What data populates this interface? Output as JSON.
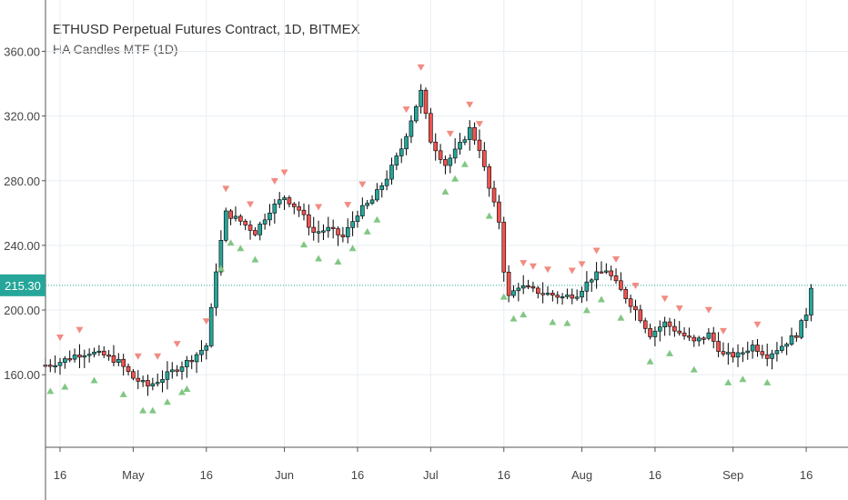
{
  "chart_data": {
    "type": "candlestick",
    "title": "ETHUSD Perpetual Futures Contract, 1D, BITMEX",
    "subtitle": "HA Candles MTF (1D)",
    "ylim": [
      132,
      376
    ],
    "y_ticks": [
      "360.00",
      "320.00",
      "280.00",
      "240.00",
      "200.00",
      "160.00"
    ],
    "y_tick_values": [
      360,
      320,
      280,
      240,
      200,
      160
    ],
    "x_ticks": [
      "16",
      "May",
      "16",
      "Jun",
      "16",
      "Jul",
      "16",
      "Aug",
      "16",
      "Sep",
      "16"
    ],
    "x_tick_days": [
      0,
      15,
      30,
      46,
      61,
      76,
      91,
      107,
      122,
      138,
      153
    ],
    "grid": true,
    "current_price": 215.3,
    "current_price_label": "215.30",
    "colors": {
      "up": "#26a69a",
      "down": "#ef5350",
      "up_marker": "#81c784",
      "down_marker": "#f28b82",
      "price_line": "#26a69a",
      "grid": "#e8eef3",
      "axis": "#555555"
    },
    "close_path": [
      [
        -3,
        166
      ],
      [
        0,
        168
      ],
      [
        3,
        172
      ],
      [
        6,
        174
      ],
      [
        9,
        172
      ],
      [
        12,
        168
      ],
      [
        15,
        158
      ],
      [
        18,
        153
      ],
      [
        21,
        158
      ],
      [
        24,
        164
      ],
      [
        27,
        170
      ],
      [
        30,
        178
      ],
      [
        31,
        200
      ],
      [
        32,
        225
      ],
      [
        34,
        260
      ],
      [
        37,
        255
      ],
      [
        40,
        248
      ],
      [
        43,
        262
      ],
      [
        46,
        270
      ],
      [
        49,
        262
      ],
      [
        52,
        248
      ],
      [
        55,
        250
      ],
      [
        58,
        245
      ],
      [
        61,
        260
      ],
      [
        64,
        268
      ],
      [
        67,
        282
      ],
      [
        70,
        300
      ],
      [
        72,
        318
      ],
      [
        74,
        335
      ],
      [
        76,
        305
      ],
      [
        79,
        290
      ],
      [
        82,
        302
      ],
      [
        84,
        312
      ],
      [
        86,
        300
      ],
      [
        88,
        275
      ],
      [
        90,
        255
      ],
      [
        91,
        225
      ],
      [
        92,
        208
      ],
      [
        94,
        215
      ],
      [
        97,
        212
      ],
      [
        100,
        210
      ],
      [
        103,
        208
      ],
      [
        106,
        210
      ],
      [
        109,
        220
      ],
      [
        112,
        225
      ],
      [
        115,
        212
      ],
      [
        118,
        200
      ],
      [
        121,
        185
      ],
      [
        124,
        192
      ],
      [
        127,
        186
      ],
      [
        130,
        180
      ],
      [
        133,
        185
      ],
      [
        136,
        172
      ],
      [
        139,
        172
      ],
      [
        142,
        178
      ],
      [
        145,
        172
      ],
      [
        148,
        178
      ],
      [
        151,
        185
      ],
      [
        153,
        198
      ],
      [
        154,
        215
      ]
    ],
    "triangles_up_days": [
      -2,
      1,
      7,
      13,
      17,
      19,
      22,
      25,
      26,
      33,
      35,
      37,
      40,
      50,
      53,
      57,
      60,
      63,
      65,
      79,
      81,
      83,
      88,
      91,
      93,
      95,
      101,
      104,
      108,
      111,
      115,
      121,
      125,
      130,
      137,
      140,
      145
    ],
    "triangles_down_days": [
      0,
      4,
      16,
      20,
      24,
      30,
      34,
      39,
      44,
      46,
      53,
      59,
      62,
      71,
      74,
      80,
      84,
      86,
      95,
      97,
      100,
      105,
      107,
      110,
      114,
      118,
      124,
      127,
      133,
      136,
      143
    ]
  }
}
